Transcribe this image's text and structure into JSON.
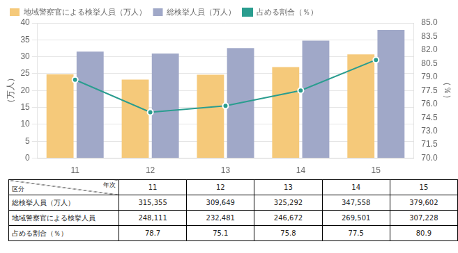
{
  "chart_data": {
    "type": "bar",
    "categories": [
      "11",
      "12",
      "13",
      "14",
      "15"
    ],
    "series": [
      {
        "name": "地域警察官による検挙人員（万人）",
        "color": "#F5C97A",
        "values": [
          24.8111,
          23.2481,
          24.6672,
          26.9501,
          30.7228
        ]
      },
      {
        "name": "総検挙人員（万人）",
        "color": "#A0A8C8",
        "values": [
          31.5355,
          30.9649,
          32.5292,
          34.7558,
          37.9602
        ]
      },
      {
        "name": "占める割合（％）",
        "type": "line",
        "marker": "circle",
        "color": "#2A9D8F",
        "axis": "y2",
        "values": [
          78.7,
          75.1,
          75.8,
          77.5,
          80.9
        ]
      }
    ],
    "ylabel": "（万人）",
    "y2label": "（％）",
    "ylim": [
      0,
      40
    ],
    "yticks": [
      0,
      5,
      10,
      15,
      20,
      25,
      30,
      35,
      40
    ],
    "y2lim": [
      70,
      85
    ],
    "y2ticks": [
      {
        "value": 70,
        "label": "70.0"
      },
      71.5,
      73,
      {
        "value": 73,
        "label": "73.0"
      },
      74.5,
      {
        "value": 76,
        "label": "76.0"
      },
      77.5,
      {
        "value": 79,
        "label": "79.0"
      },
      80.5,
      {
        "value": 82,
        "label": "82.0"
      },
      83.5,
      {
        "value": 85,
        "label": "85.0"
      }
    ],
    "grid": true,
    "legend": "upper left",
    "table": {
      "corner": [
        "年次",
        "区分"
      ],
      "columns": [
        "11",
        "12",
        "13",
        "14",
        "15"
      ],
      "rows": [
        [
          "総検挙人員（万人）",
          "315,355",
          "309,649",
          "325,292",
          "347,558",
          "379,602"
        ],
        [
          "地域警察官による検挙人員",
          "248,111",
          "232,481",
          "246,672",
          "269,501",
          "307,228"
        ],
        [
          "占める割合（％）",
          "78.7",
          "75.1",
          "75.8",
          "77.5",
          "80.9"
        ]
      ]
    }
  }
}
